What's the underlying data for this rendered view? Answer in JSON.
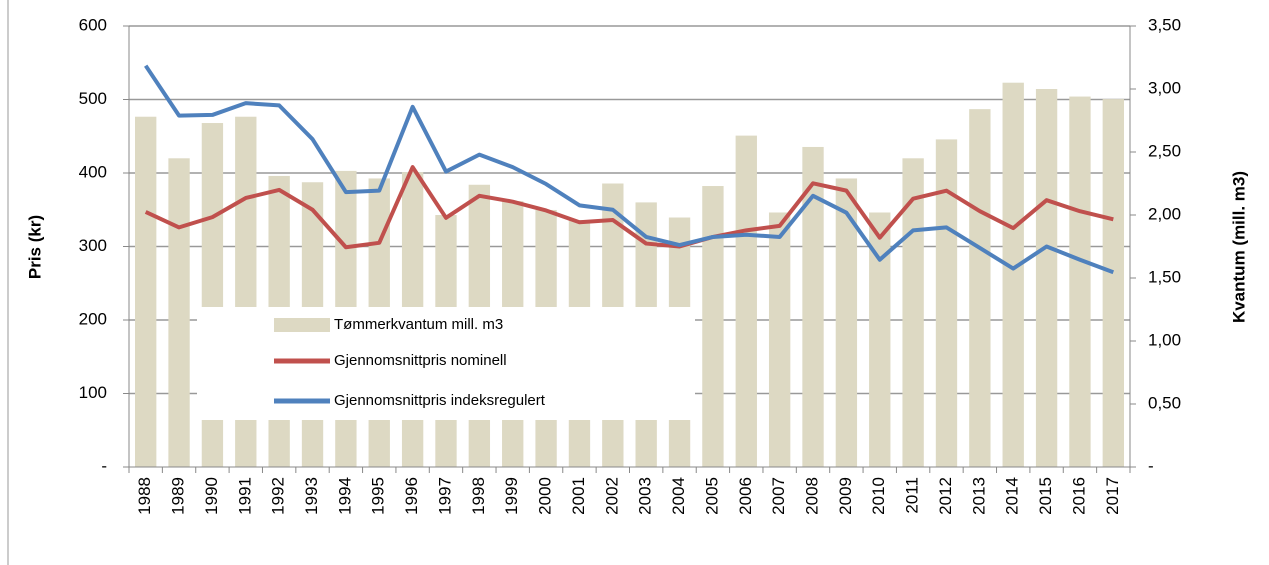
{
  "chart_data": {
    "type": "bar_line",
    "y_label": "Pris (kr)",
    "y2_label": "Kvantum (mill. m3)",
    "categories": [
      "1988",
      "1989",
      "1990",
      "1991",
      "1992",
      "1993",
      "1994",
      "1995",
      "1996",
      "1997",
      "1998",
      "1999",
      "2000",
      "2001",
      "2002",
      "2003",
      "2004",
      "2005",
      "2006",
      "2007",
      "2008",
      "2009",
      "2010",
      "2011",
      "2012",
      "2013",
      "2014",
      "2015",
      "2016",
      "2017"
    ],
    "series": [
      {
        "name": "Tømmerkvantum mill. m3",
        "color": "#ddd9c3",
        "kind": "bar",
        "axis": "y2",
        "values": [
          2.78,
          2.45,
          2.73,
          2.78,
          2.31,
          2.26,
          2.35,
          2.29,
          2.34,
          2.0,
          2.24,
          2.11,
          2.04,
          1.96,
          2.25,
          2.1,
          1.98,
          2.23,
          2.63,
          2.02,
          2.54,
          2.29,
          2.02,
          2.45,
          2.6,
          2.84,
          3.05,
          3.0,
          2.94,
          2.92
        ]
      },
      {
        "name": "Gjennomsnittpris nominell",
        "color": "#c0504d",
        "kind": "line",
        "axis": "y",
        "values": [
          347,
          326,
          340,
          366,
          377,
          350,
          299,
          305,
          408,
          339,
          369,
          361,
          349,
          333,
          336,
          304,
          300,
          313,
          322,
          328,
          386,
          376,
          312,
          365,
          376,
          348,
          325,
          363,
          348,
          337
        ]
      },
      {
        "name": "Gjennomsnittpris indeksregulert",
        "color": "#4f81bd",
        "kind": "line",
        "axis": "y",
        "values": [
          546,
          478,
          479,
          495,
          492,
          446,
          374,
          376,
          490,
          402,
          425,
          408,
          385,
          356,
          350,
          313,
          302,
          313,
          316,
          313,
          369,
          346,
          282,
          322,
          326,
          298,
          270,
          300,
          282,
          265
        ]
      }
    ],
    "ylim": [
      0,
      600
    ],
    "yticks": [
      {
        "value": 0,
        "label": "-"
      },
      100,
      200,
      300,
      400,
      500,
      600
    ],
    "y2lim": [
      0,
      3.5
    ],
    "y2ticks": [
      {
        "value": 0,
        "label": "-"
      },
      {
        "value": 0.5,
        "label": "0,50"
      },
      {
        "value": 1,
        "label": "1,00"
      },
      {
        "value": 1.5,
        "label": "1,50"
      },
      {
        "value": 2,
        "label": "2,00"
      },
      {
        "value": 2.5,
        "label": "2,50"
      },
      {
        "value": 3,
        "label": "3,00"
      },
      {
        "value": 3.5,
        "label": "3,50"
      }
    ],
    "grid": true
  }
}
